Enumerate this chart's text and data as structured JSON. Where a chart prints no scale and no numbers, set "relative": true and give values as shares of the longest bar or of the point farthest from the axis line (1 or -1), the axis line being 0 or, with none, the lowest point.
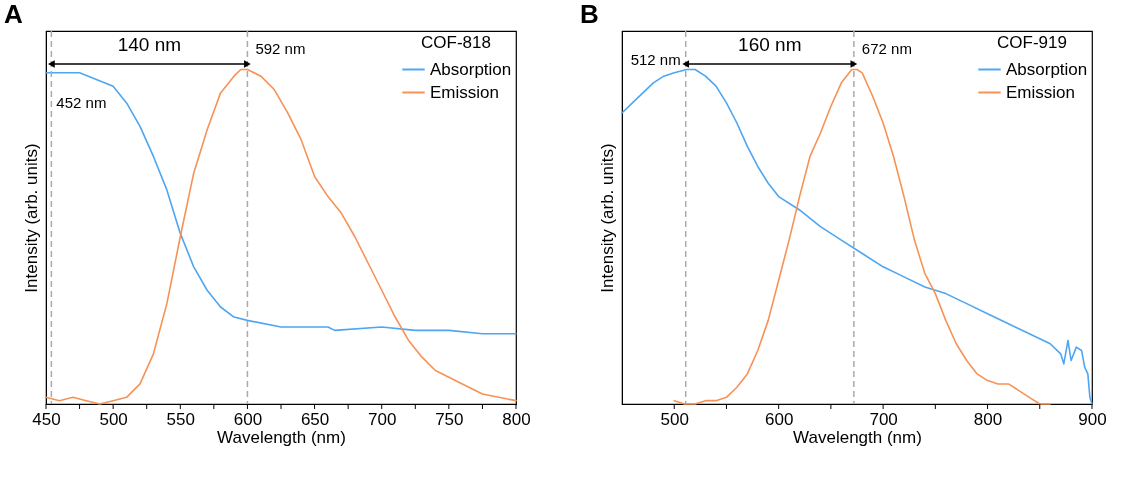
{
  "chart_data": [
    {
      "type": "line",
      "title": "A",
      "xlabel": "Wavelength (nm)",
      "ylabel": "Intensity (arb. units)",
      "legend_title": "COF-818",
      "legend": "top right",
      "relative": true,
      "xlim": [
        450,
        800
      ],
      "xticks": [
        450,
        {
          "value": 475,
          "label": null
        },
        500,
        {
          "value": 525,
          "label": null
        },
        550,
        {
          "value": 575,
          "label": null
        },
        600,
        {
          "value": 625,
          "label": null
        },
        650,
        {
          "value": 675,
          "label": null
        },
        700,
        {
          "value": 725,
          "label": null
        },
        750,
        {
          "value": 775,
          "label": null
        },
        800
      ],
      "series": [
        {
          "name": "Absorption",
          "color": "#4ea6f0",
          "x": [
            450,
            475,
            500,
            510,
            520,
            530,
            540,
            550,
            560,
            570,
            580,
            590,
            600,
            625,
            650,
            660,
            665,
            700,
            725,
            750,
            775,
            800
          ],
          "values": [
            0.99,
            0.99,
            0.95,
            0.9,
            0.83,
            0.74,
            0.64,
            0.51,
            0.41,
            0.34,
            0.29,
            0.26,
            0.25,
            0.23,
            0.23,
            0.23,
            0.22,
            0.23,
            0.22,
            0.22,
            0.21,
            0.21
          ]
        },
        {
          "name": "Emission",
          "color": "#f79256",
          "x": [
            450,
            460,
            470,
            480,
            490,
            500,
            510,
            520,
            530,
            540,
            550,
            560,
            570,
            580,
            590,
            595,
            600,
            610,
            620,
            630,
            640,
            650,
            660,
            670,
            680,
            690,
            700,
            710,
            720,
            730,
            740,
            750,
            760,
            775,
            800
          ],
          "values": [
            0.02,
            0.01,
            0.02,
            0.01,
            0.0,
            0.01,
            0.02,
            0.06,
            0.15,
            0.3,
            0.5,
            0.69,
            0.82,
            0.93,
            0.98,
            1.0,
            1.0,
            0.98,
            0.94,
            0.87,
            0.79,
            0.68,
            0.62,
            0.57,
            0.5,
            0.42,
            0.34,
            0.26,
            0.19,
            0.14,
            0.1,
            0.08,
            0.06,
            0.03,
            0.01
          ]
        }
      ],
      "ref_lines": [
        {
          "axis": "x",
          "value": 454,
          "color": "#aaaaaa",
          "line_style": "dashed"
        },
        {
          "axis": "x",
          "value": 600,
          "color": "#aaaaaa",
          "line_style": "dashed"
        }
      ],
      "annotations": [
        "140 nm",
        "452 nm",
        "592 nm"
      ]
    },
    {
      "type": "line",
      "title": "B",
      "xlabel": "Wavelength (nm)",
      "ylabel": "Intensity (arb. units)",
      "legend_title": "COF-919",
      "legend": "top right",
      "relative": true,
      "xlim": [
        450,
        900
      ],
      "xticks": [
        500,
        {
          "value": 550,
          "label": null
        },
        600,
        {
          "value": 650,
          "label": null
        },
        700,
        {
          "value": 750,
          "label": null
        },
        800,
        {
          "value": 850,
          "label": null
        },
        900
      ],
      "series": [
        {
          "name": "Absorption",
          "color": "#4ea6f0",
          "x": [
            450,
            460,
            470,
            480,
            490,
            500,
            512,
            520,
            530,
            540,
            550,
            560,
            570,
            580,
            590,
            600,
            620,
            640,
            660,
            680,
            700,
            720,
            740,
            760,
            780,
            800,
            820,
            840,
            860,
            870,
            873,
            877,
            880,
            885,
            890,
            893,
            896,
            898,
            900
          ],
          "values": [
            0.87,
            0.9,
            0.93,
            0.96,
            0.98,
            0.99,
            1.0,
            1.0,
            0.98,
            0.95,
            0.9,
            0.84,
            0.77,
            0.71,
            0.66,
            0.62,
            0.58,
            0.53,
            0.49,
            0.45,
            0.41,
            0.38,
            0.35,
            0.33,
            0.3,
            0.27,
            0.24,
            0.21,
            0.18,
            0.15,
            0.12,
            0.19,
            0.13,
            0.17,
            0.16,
            0.11,
            0.09,
            0.02,
            0.0
          ]
        },
        {
          "name": "Emission",
          "color": "#f79256",
          "x": [
            500,
            510,
            520,
            530,
            540,
            550,
            560,
            570,
            580,
            590,
            600,
            610,
            620,
            630,
            640,
            650,
            660,
            670,
            675,
            680,
            690,
            700,
            710,
            720,
            730,
            740,
            750,
            760,
            770,
            780,
            790,
            800,
            810,
            820,
            830,
            840,
            850,
            860
          ],
          "values": [
            0.01,
            0.0,
            0.0,
            0.01,
            0.01,
            0.02,
            0.05,
            0.09,
            0.16,
            0.25,
            0.37,
            0.49,
            0.62,
            0.74,
            0.81,
            0.89,
            0.96,
            1.0,
            1.0,
            0.99,
            0.92,
            0.84,
            0.74,
            0.62,
            0.49,
            0.39,
            0.33,
            0.25,
            0.18,
            0.13,
            0.09,
            0.07,
            0.06,
            0.06,
            0.04,
            0.02,
            0.0,
            0.0
          ]
        }
      ],
      "ref_lines": [
        {
          "axis": "x",
          "value": 511,
          "color": "#aaaaaa",
          "line_style": "dashed"
        },
        {
          "axis": "x",
          "value": 672,
          "color": "#aaaaaa",
          "line_style": "dashed"
        }
      ],
      "annotations": [
        "160 nm",
        "512 nm",
        "672 nm"
      ]
    }
  ]
}
